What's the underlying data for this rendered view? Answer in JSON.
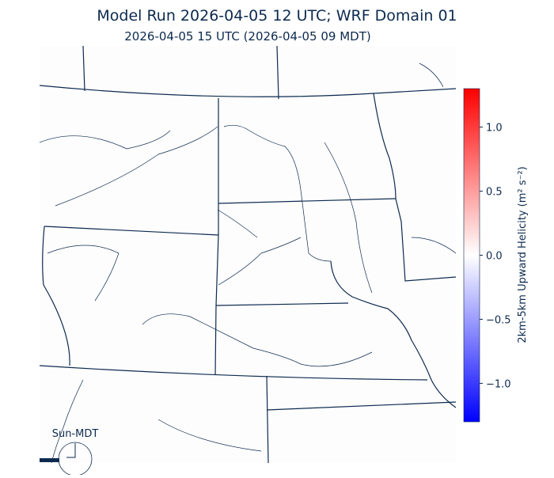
{
  "header": {
    "title": "Model Run 2026-04-05 12 UTC; WRF Domain 01",
    "subtitle": "2026-04-05 15 UTC  (2026-04-05 09 MDT)"
  },
  "colorbar": {
    "label": "2km-5km Upward Helicity (m² s⁻²)",
    "lim": [
      -1.3,
      1.3
    ],
    "ticks": [
      {
        "value": 1,
        "label": "1.0"
      },
      0.5,
      {
        "value": 0,
        "label": "0.0"
      },
      {
        "value": -0.5,
        "label": "−0.5"
      },
      {
        "value": -1,
        "label": "−1.0"
      }
    ],
    "colors": [
      "#0000ff",
      "#ffffff",
      "#ff0000"
    ]
  },
  "clock": {
    "label": "Sun-MDT"
  }
}
